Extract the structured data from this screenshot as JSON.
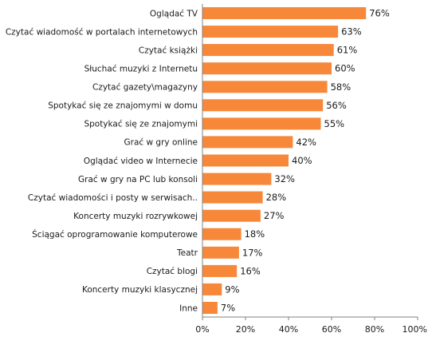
{
  "chart_data": {
    "type": "bar",
    "orientation": "horizontal",
    "title": "",
    "xlabel": "",
    "ylabel": "",
    "xlim": [
      0,
      100
    ],
    "x_ticks": [
      "0%",
      "20%",
      "40%",
      "60%",
      "80%",
      "100%"
    ],
    "bar_color": "#f7883a",
    "grid": false,
    "legend": false,
    "categories": [
      "Oglądać TV",
      "Czytać wiadomość w portalach internetowych",
      "Czytać książki",
      "Słuchać muzyki z Internetu",
      "Czytać gazety\\magazyny",
      "Spotykać się ze znajomymi w domu",
      "Spotykać się ze znajomymi",
      "Grać w gry online",
      "Oglądać video w Internecie",
      "Grać w gry na PC lub konsoli",
      "Czytać wiadomości i posty w serwisach..",
      "Koncerty muzyki rozrywkowej",
      "Ściągać oprogramowanie komputerowe",
      "Teatr",
      "Czytać blogi",
      "Koncerty muzyki klasycznej",
      "Inne"
    ],
    "values": [
      76,
      63,
      61,
      60,
      58,
      56,
      55,
      42,
      40,
      32,
      28,
      27,
      18,
      17,
      16,
      9,
      7
    ],
    "value_labels": [
      "76%",
      "63%",
      "61%",
      "60%",
      "58%",
      "56%",
      "55%",
      "42%",
      "40%",
      "32%",
      "28%",
      "27%",
      "18%",
      "17%",
      "16%",
      "9%",
      "7%"
    ]
  }
}
